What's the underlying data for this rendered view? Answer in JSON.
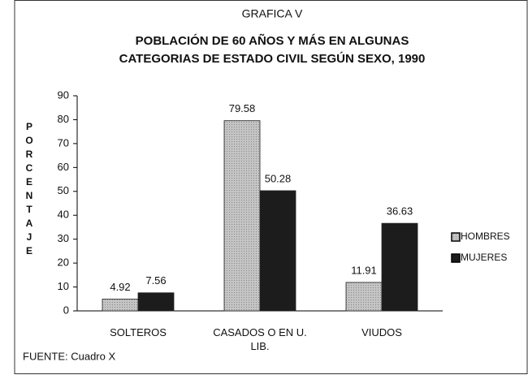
{
  "chart_data": {
    "type": "bar",
    "title": "GRAFICA V",
    "subtitle": [
      "POBLACIÓN DE 60 AÑOS Y MÁS EN ALGUNAS",
      "CATEGORIAS DE ESTADO CIVIL SEGÚN SEXO, 1990"
    ],
    "y_label": "PORCENTAJE",
    "categories": [
      "SOLTEROS",
      "CASADOS O EN U. LIB.",
      "VIUDOS"
    ],
    "series": [
      {
        "name": "HOMBRES",
        "color": "#c4c4c4",
        "values": [
          4.92,
          79.58,
          11.91
        ]
      },
      {
        "name": "MUJERES",
        "color": "#1c1c1c",
        "values": [
          7.56,
          50.28,
          36.63
        ]
      }
    ],
    "ylim": [
      0,
      90
    ],
    "yticks": [
      0,
      10,
      20,
      30,
      40,
      50,
      60,
      70,
      80,
      90
    ],
    "legend": "right",
    "source": "FUENTE: Cuadro X"
  }
}
